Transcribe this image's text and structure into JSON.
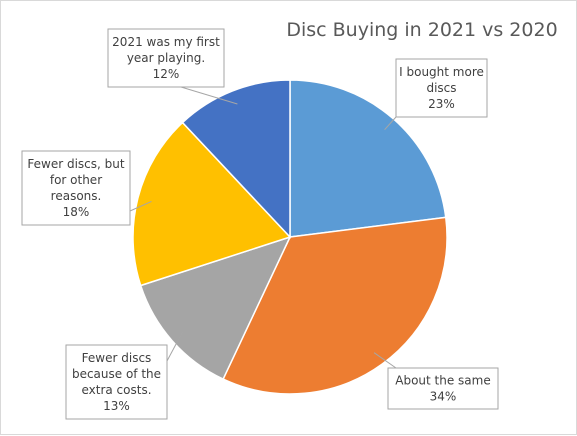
{
  "chart_data": {
    "type": "pie",
    "title": "Disc Buying in 2021 vs 2020",
    "slices": [
      {
        "label_lines": [
          "I bought more",
          "discs"
        ],
        "value": 23,
        "value_label": "23%",
        "color": "#5b9bd5"
      },
      {
        "label_lines": [
          "About the same"
        ],
        "value": 34,
        "value_label": "34%",
        "color": "#ed7d31"
      },
      {
        "label_lines": [
          "Fewer discs",
          "because of the",
          "extra costs."
        ],
        "value": 13,
        "value_label": "13%",
        "color": "#a5a5a5"
      },
      {
        "label_lines": [
          "Fewer discs, but",
          "for other",
          "reasons."
        ],
        "value": 18,
        "value_label": "18%",
        "color": "#ffc000"
      },
      {
        "label_lines": [
          "2021 was my first",
          "year playing."
        ],
        "value": 12,
        "value_label": "12%",
        "color": "#4472c4"
      }
    ]
  }
}
